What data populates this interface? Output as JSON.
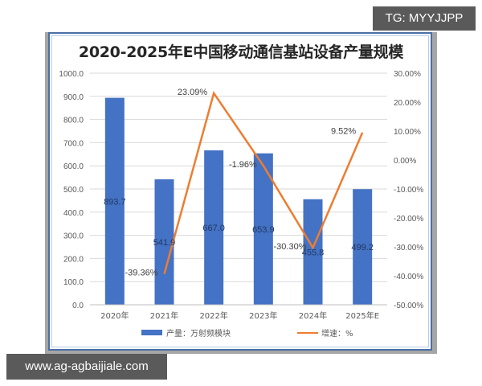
{
  "chart_data": {
    "type": "bar+line",
    "title": "2020-2025年E中国移动通信基站设备产量规模",
    "categories": [
      "2020年",
      "2021年",
      "2022年",
      "2023年",
      "2024年",
      "2025年E"
    ],
    "series": [
      {
        "name": "产量：万射频模块",
        "type": "bar",
        "axis": "left",
        "color": "#4472C4",
        "values": [
          893.7,
          541.9,
          667.0,
          653.9,
          455.8,
          499.2
        ],
        "labels": [
          "893.7",
          "541.9",
          "667.0",
          "653.9",
          "455.8",
          "499.2"
        ]
      },
      {
        "name": "增速：%",
        "type": "line",
        "axis": "right",
        "color": "#ED7D31",
        "values": [
          null,
          -39.36,
          23.09,
          -1.96,
          -30.3,
          9.52
        ],
        "labels": [
          "",
          "-39.36%",
          "23.09%",
          "-1.96%",
          "-30.30%",
          "9.52%"
        ]
      }
    ],
    "left_axis": {
      "ylim": [
        0,
        1000
      ],
      "ticks": [
        "1000.0",
        "900.0",
        "800.0",
        "700.0",
        "600.0",
        "500.0",
        "400.0",
        "300.0",
        "200.0",
        "100.0",
        "0.0"
      ]
    },
    "right_axis": {
      "ylim": [
        -50,
        30
      ],
      "ticks": [
        "30.00%",
        "20.00%",
        "10.00%",
        "0.00%",
        "-10.00%",
        "-20.00%",
        "-30.00%",
        "-40.00%",
        "-50.00%"
      ]
    },
    "grid": true,
    "legend_position": "bottom"
  },
  "overlays": {
    "tg_badge": "TG: MYYJJPP",
    "url_badge": "www.ag-agbaijiale.com"
  }
}
